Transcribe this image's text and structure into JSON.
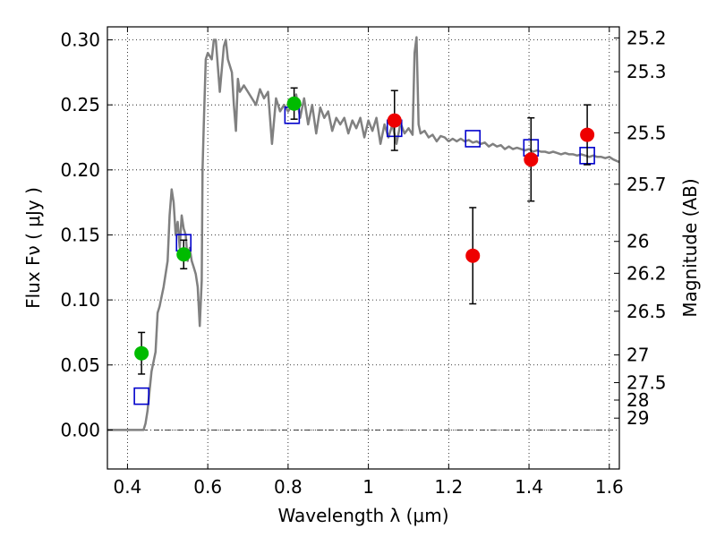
{
  "chart_data": {
    "type": "scatter",
    "xlabel": "Wavelength  λ (μm)",
    "ylabel": "Flux  Fν  ( μJy )",
    "y2label": "Magnitude (AB)",
    "xlim": [
      0.35,
      1.625
    ],
    "ylim": [
      -0.03,
      0.31
    ],
    "grid": true,
    "x_ticks": [
      0.4,
      0.6,
      0.8,
      1.0,
      1.2,
      1.4,
      1.6
    ],
    "x_tick_labels": [
      "0.4",
      "0.6",
      "0.8",
      "1",
      "1.2",
      "1.4",
      "1.6"
    ],
    "y_ticks": [
      0.0,
      0.05,
      0.1,
      0.15,
      0.2,
      0.25,
      0.3
    ],
    "y_tick_labels": [
      "0.00",
      "0.05",
      "0.10",
      "0.15",
      "0.20",
      "0.25",
      "0.30"
    ],
    "y2_ticks": [
      {
        "flux": 0.3015,
        "label": "25.2"
      },
      {
        "flux": 0.2755,
        "label": "25.3"
      },
      {
        "flux": 0.2285,
        "label": "25.5"
      },
      {
        "flux": 0.189,
        "label": "25.7"
      },
      {
        "flux": 0.145,
        "label": "26"
      },
      {
        "flux": 0.1205,
        "label": "26.2"
      },
      {
        "flux": 0.0913,
        "label": "26.5"
      },
      {
        "flux": 0.0577,
        "label": "27"
      },
      {
        "flux": 0.0364,
        "label": "27.5"
      },
      {
        "flux": 0.023,
        "label": "28"
      },
      {
        "flux": 0.0091,
        "label": "29"
      }
    ],
    "series": [
      {
        "name": "template_sed",
        "kind": "line",
        "color": "#808080",
        "x": [
          0.35,
          0.44,
          0.445,
          0.45,
          0.46,
          0.47,
          0.475,
          0.48,
          0.49,
          0.5,
          0.505,
          0.51,
          0.515,
          0.52,
          0.525,
          0.53,
          0.535,
          0.54,
          0.545,
          0.55,
          0.555,
          0.56,
          0.565,
          0.57,
          0.575,
          0.58,
          0.585,
          0.587,
          0.59,
          0.595,
          0.6,
          0.61,
          0.615,
          0.62,
          0.63,
          0.64,
          0.645,
          0.65,
          0.66,
          0.665,
          0.67,
          0.675,
          0.68,
          0.69,
          0.7,
          0.71,
          0.72,
          0.73,
          0.74,
          0.75,
          0.76,
          0.77,
          0.78,
          0.79,
          0.8,
          0.81,
          0.82,
          0.83,
          0.84,
          0.85,
          0.86,
          0.87,
          0.88,
          0.89,
          0.9,
          0.91,
          0.92,
          0.93,
          0.94,
          0.95,
          0.96,
          0.97,
          0.98,
          0.99,
          1.0,
          1.01,
          1.02,
          1.03,
          1.04,
          1.05,
          1.06,
          1.07,
          1.08,
          1.09,
          1.1,
          1.11,
          1.115,
          1.12,
          1.125,
          1.13,
          1.14,
          1.15,
          1.16,
          1.17,
          1.18,
          1.19,
          1.2,
          1.21,
          1.22,
          1.23,
          1.24,
          1.25,
          1.26,
          1.27,
          1.28,
          1.29,
          1.3,
          1.31,
          1.32,
          1.33,
          1.34,
          1.35,
          1.36,
          1.37,
          1.38,
          1.39,
          1.4,
          1.41,
          1.42,
          1.43,
          1.44,
          1.45,
          1.46,
          1.47,
          1.48,
          1.49,
          1.5,
          1.51,
          1.52,
          1.53,
          1.54,
          1.55,
          1.56,
          1.57,
          1.58,
          1.59,
          1.6,
          1.61,
          1.625
        ],
        "y": [
          0.0,
          0.0,
          0.005,
          0.015,
          0.045,
          0.06,
          0.09,
          0.095,
          0.11,
          0.13,
          0.165,
          0.185,
          0.175,
          0.15,
          0.16,
          0.14,
          0.165,
          0.155,
          0.15,
          0.13,
          0.14,
          0.13,
          0.125,
          0.12,
          0.11,
          0.08,
          0.115,
          0.2,
          0.235,
          0.285,
          0.29,
          0.285,
          0.3,
          0.3,
          0.26,
          0.295,
          0.3,
          0.285,
          0.275,
          0.25,
          0.23,
          0.27,
          0.26,
          0.265,
          0.26,
          0.255,
          0.25,
          0.262,
          0.255,
          0.26,
          0.22,
          0.255,
          0.245,
          0.25,
          0.245,
          0.25,
          0.258,
          0.24,
          0.255,
          0.235,
          0.25,
          0.228,
          0.248,
          0.24,
          0.245,
          0.23,
          0.24,
          0.235,
          0.24,
          0.228,
          0.238,
          0.232,
          0.24,
          0.225,
          0.238,
          0.23,
          0.24,
          0.22,
          0.235,
          0.225,
          0.235,
          0.22,
          0.236,
          0.228,
          0.232,
          0.227,
          0.29,
          0.302,
          0.235,
          0.228,
          0.23,
          0.225,
          0.227,
          0.222,
          0.226,
          0.225,
          0.222,
          0.224,
          0.222,
          0.224,
          0.222,
          0.223,
          0.221,
          0.222,
          0.22,
          0.221,
          0.218,
          0.22,
          0.218,
          0.219,
          0.216,
          0.218,
          0.216,
          0.217,
          0.216,
          0.215,
          0.216,
          0.214,
          0.215,
          0.214,
          0.214,
          0.213,
          0.214,
          0.213,
          0.212,
          0.213,
          0.212,
          0.212,
          0.211,
          0.212,
          0.211,
          0.21,
          0.211,
          0.21,
          0.21,
          0.209,
          0.21,
          0.208,
          0.206
        ]
      },
      {
        "name": "model_photometry",
        "kind": "open_square",
        "color": "#0000cc",
        "x": [
          0.435,
          0.54,
          0.81,
          1.065,
          1.26,
          1.405,
          1.545
        ],
        "y": [
          0.026,
          0.144,
          0.242,
          0.232,
          0.224,
          0.217,
          0.211
        ]
      },
      {
        "name": "ground_photometry",
        "kind": "point_errorbar",
        "color": "#00bb00",
        "x": [
          0.435,
          0.54,
          0.815
        ],
        "y": [
          0.059,
          0.135,
          0.251
        ],
        "yerr": [
          0.016,
          0.011,
          0.012
        ]
      },
      {
        "name": "nir_photometry",
        "kind": "point_errorbar",
        "color": "#ee0000",
        "x": [
          1.065,
          1.26,
          1.405,
          1.545
        ],
        "y": [
          0.238,
          0.134,
          0.208,
          0.227
        ],
        "yerr": [
          0.023,
          0.037,
          0.032,
          0.023
        ]
      }
    ]
  }
}
